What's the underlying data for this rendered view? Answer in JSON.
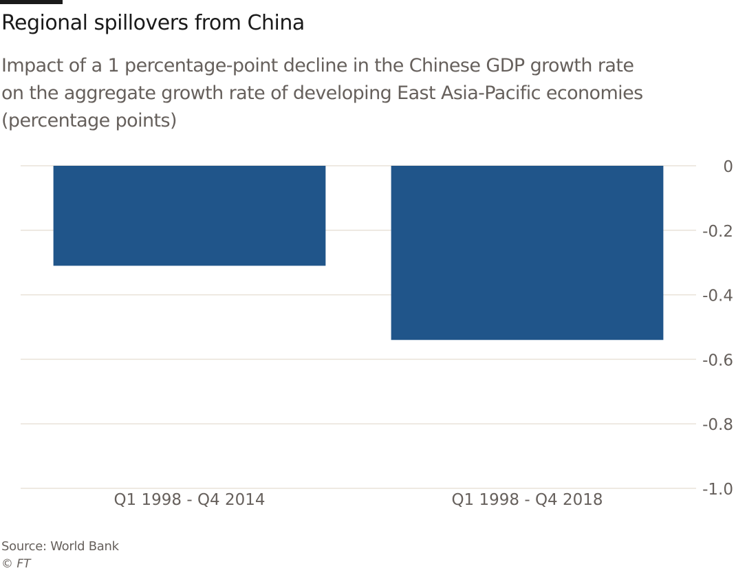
{
  "header": {
    "title": "Regional spillovers from China",
    "subtitle_lines": [
      "Impact of a 1 percentage-point decline in the Chinese GDP growth rate",
      "on the aggregate growth rate of developing East Asia-Pacific economies",
      "(percentage points)"
    ]
  },
  "footer": {
    "source": "Source: World Bank",
    "credit": "© FT"
  },
  "colors": {
    "bar": "#20558a",
    "gridline": "#e9e2d8",
    "axis_text": "#66605c"
  },
  "chart_data": {
    "type": "bar",
    "title": "Regional spillovers from China",
    "subtitle": "Impact of a 1 percentage-point decline in the Chinese GDP growth rate on the aggregate growth rate of developing East Asia-Pacific economies (percentage points)",
    "categories": [
      "Q1 1998 - Q4 2014",
      "Q1 1998 - Q4 2018"
    ],
    "values": [
      -0.31,
      -0.54
    ],
    "xlabel": "",
    "ylabel": "",
    "ylim": [
      -1.0,
      0
    ],
    "yticks": [
      0,
      -0.2,
      -0.4,
      -0.6,
      -0.8,
      -1.0
    ],
    "ytick_labels": [
      "0",
      "-0.2",
      "-0.4",
      "-0.6",
      "-0.8",
      "-1.0"
    ],
    "y_axis_side": "right",
    "grid": true,
    "legend": "none"
  }
}
